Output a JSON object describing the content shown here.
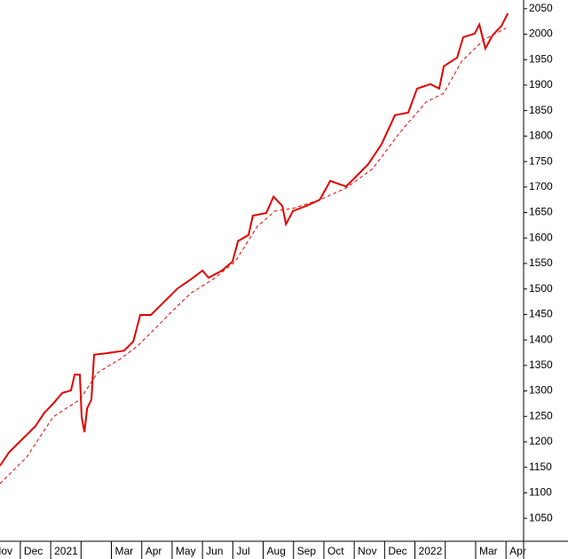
{
  "chart_data": {
    "type": "line",
    "series": [
      {
        "color": "#e00000",
        "dash": false,
        "x": [
          0.33,
          0.62,
          1.06,
          1.5,
          1.79,
          2.08,
          2.38,
          2.67,
          2.79,
          2.96,
          3.02,
          3.11,
          3.2,
          3.34,
          3.43,
          3.84,
          4.42,
          4.72,
          4.95,
          5.3,
          5.59,
          5.89,
          6.18,
          6.62,
          7.0,
          7.2,
          7.64,
          7.99,
          8.17,
          8.52,
          8.66,
          9.1,
          9.34,
          9.63,
          9.75,
          9.98,
          10.42,
          10.86,
          11.21,
          11.73,
          12.03,
          12.46,
          12.9,
          13.34,
          13.78,
          14.07,
          14.51,
          14.8,
          14.95,
          15.39,
          15.59,
          15.97,
          16.12,
          16.32,
          16.56,
          16.85,
          17.06
        ],
        "values": [
          1153,
          1179,
          1205,
          1231,
          1257,
          1275,
          1296,
          1301,
          1332,
          1332,
          1249,
          1219,
          1266,
          1283,
          1371,
          1374,
          1379,
          1397,
          1449,
          1449,
          1466,
          1484,
          1501,
          1519,
          1536,
          1522,
          1536,
          1554,
          1594,
          1606,
          1644,
          1649,
          1681,
          1663,
          1627,
          1653,
          1663,
          1675,
          1712,
          1701,
          1719,
          1745,
          1784,
          1841,
          1846,
          1893,
          1902,
          1893,
          1937,
          1954,
          1994,
          2001,
          2019,
          1972,
          1998,
          2016,
          2041
        ]
      },
      {
        "color": "#e00000",
        "dash": true,
        "x": [
          0.33,
          1.21,
          2.08,
          2.96,
          3.55,
          4.28,
          4.86,
          5.45,
          6.03,
          6.62,
          7.35,
          8.08,
          8.81,
          9.39,
          9.98,
          10.86,
          11.73,
          12.61,
          13.49,
          14.37,
          14.95,
          15.53,
          16.27,
          17.0
        ],
        "values": [
          1118,
          1170,
          1249,
          1283,
          1336,
          1362,
          1388,
          1423,
          1458,
          1492,
          1519,
          1554,
          1623,
          1653,
          1658,
          1675,
          1698,
          1736,
          1806,
          1867,
          1884,
          1946,
          1989,
          2012
        ]
      }
    ],
    "xlim": [
      0.33,
      17.58
    ],
    "xticks": [
      {
        "value": 0,
        "label": "Nov"
      },
      {
        "value": 1,
        "label": "Dec"
      },
      {
        "value": 2,
        "label": "2021"
      },
      {
        "value": 3,
        "label": null
      },
      {
        "value": 4,
        "label": "Mar"
      },
      {
        "value": 5,
        "label": "Apr"
      },
      {
        "value": 6,
        "label": "May"
      },
      {
        "value": 7,
        "label": "Jun"
      },
      {
        "value": 8,
        "label": "Jul"
      },
      {
        "value": 9,
        "label": "Aug"
      },
      {
        "value": 10,
        "label": "Sep"
      },
      {
        "value": 11,
        "label": "Oct"
      },
      {
        "value": 12,
        "label": "Nov"
      },
      {
        "value": 13,
        "label": "Dec"
      },
      {
        "value": 14,
        "label": "2022"
      },
      {
        "value": 15,
        "label": null
      },
      {
        "value": 16,
        "label": "Mar"
      },
      {
        "value": 17,
        "label": "Apr"
      }
    ],
    "ylim": [
      1005,
      2067
    ],
    "yticks": [
      1050,
      1100,
      1150,
      1200,
      1250,
      1300,
      1350,
      1400,
      1450,
      1500,
      1550,
      1600,
      1650,
      1700,
      1750,
      1800,
      1850,
      1900,
      1950,
      2000,
      2050
    ]
  }
}
